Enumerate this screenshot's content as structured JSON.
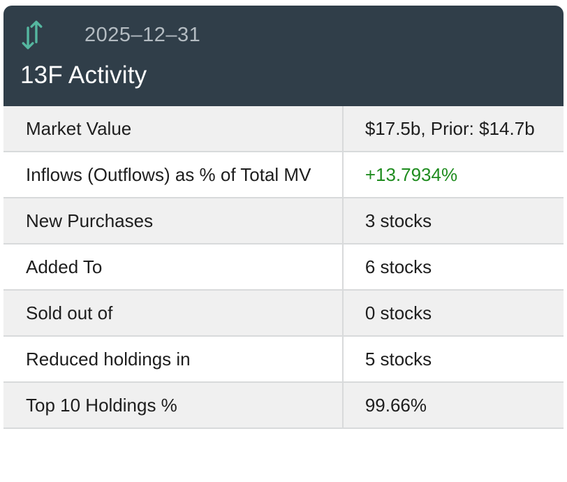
{
  "header": {
    "date": "2025–12–31",
    "title": "13F Activity",
    "icon": "up-down-arrows-icon"
  },
  "table": {
    "rows": [
      {
        "label": "Market Value",
        "value": "$17.5b, Prior: $14.7b",
        "positive": false
      },
      {
        "label": "Inflows (Outflows) as % of Total MV",
        "value": "+13.7934%",
        "positive": true
      },
      {
        "label": "New Purchases",
        "value": "3 stocks",
        "positive": false
      },
      {
        "label": "Added To",
        "value": "6 stocks",
        "positive": false
      },
      {
        "label": "Sold out of",
        "value": "0 stocks",
        "positive": false
      },
      {
        "label": "Reduced holdings in",
        "value": "5 stocks",
        "positive": false
      },
      {
        "label": "Top 10 Holdings %",
        "value": "99.66%",
        "positive": false
      }
    ]
  },
  "colors": {
    "header_bg": "#303e49",
    "accent_teal": "#55b7a0",
    "date_text": "#b4bcc2",
    "title_text": "#ffffff",
    "row_alt_bg": "#f0f0f0",
    "row_bg": "#ffffff",
    "divider": "#d8dadb",
    "text": "#1e1e1e",
    "positive_green": "#1f8c1f"
  }
}
